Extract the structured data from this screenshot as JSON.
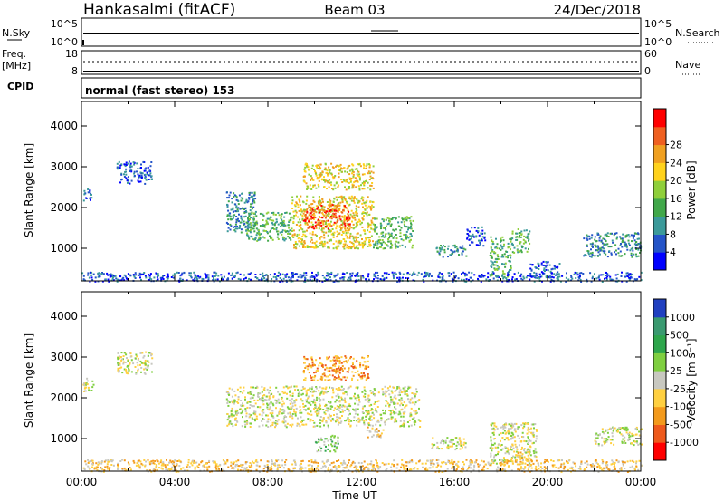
{
  "header": {
    "station": "Hankasalmi (fitACF)",
    "beam": "Beam 03",
    "date": "24/Dec/2018"
  },
  "panels": {
    "nsky": {
      "left_label": "N.Sky",
      "right_label": "N.Search",
      "left_ticks": [
        "10^5",
        "10^0"
      ],
      "right_ticks": [
        "10^5",
        "10^0"
      ]
    },
    "freq": {
      "left_label_1": "Freq.",
      "left_label_2": "[MHz]",
      "right_label": "Nave",
      "left_ticks": [
        "18",
        "8"
      ],
      "right_ticks": [
        "60",
        "0"
      ]
    },
    "cpid": {
      "label": "CPID",
      "mode": "normal (fast stereo) 153"
    }
  },
  "chart_data": [
    {
      "type": "heatmap",
      "name": "power",
      "ylabel": "Slant Range [km]",
      "ylim": [
        200,
        4600
      ],
      "yticks": [
        "1000",
        "2000",
        "3000",
        "4000"
      ],
      "colorbar": {
        "label": "Power [dB]",
        "ticks": [
          "4",
          "8",
          "12",
          "16",
          "20",
          "24",
          "28"
        ],
        "colors": [
          "#0000ff",
          "#2454c8",
          "#3b9a9a",
          "#41a84a",
          "#8fcf3a",
          "#ffd21c",
          "#f0a020",
          "#ef6020",
          "#ff0000"
        ]
      },
      "regions": [
        {
          "t0": 0.0,
          "t1": 0.4,
          "r0": 2150,
          "r1": 2500,
          "level": 1
        },
        {
          "t0": 1.5,
          "t1": 3.0,
          "r0": 2600,
          "r1": 3150,
          "level": 1
        },
        {
          "t0": 6.2,
          "t1": 7.5,
          "r0": 1400,
          "r1": 2400,
          "level": 2
        },
        {
          "t0": 7.0,
          "t1": 9.0,
          "r0": 1200,
          "r1": 1900,
          "level": 3
        },
        {
          "t0": 9.0,
          "t1": 12.5,
          "r0": 1000,
          "r1": 2300,
          "level": 5
        },
        {
          "t0": 9.5,
          "t1": 11.5,
          "r0": 1500,
          "r1": 2100,
          "level": 7
        },
        {
          "t0": 9.5,
          "t1": 12.5,
          "r0": 2450,
          "r1": 3100,
          "level": 5
        },
        {
          "t0": 12.5,
          "t1": 14.2,
          "r0": 1000,
          "r1": 1800,
          "level": 3
        },
        {
          "t0": 15.2,
          "t1": 16.5,
          "r0": 800,
          "r1": 1100,
          "level": 2
        },
        {
          "t0": 16.5,
          "t1": 17.3,
          "r0": 1050,
          "r1": 1550,
          "level": 1
        },
        {
          "t0": 17.5,
          "t1": 18.4,
          "r0": 300,
          "r1": 1300,
          "level": 3
        },
        {
          "t0": 18.4,
          "t1": 19.2,
          "r0": 900,
          "r1": 1500,
          "level": 3
        },
        {
          "t0": 19.2,
          "t1": 20.5,
          "r0": 300,
          "r1": 700,
          "level": 1
        },
        {
          "t0": 21.5,
          "t1": 24.0,
          "r0": 800,
          "r1": 1400,
          "level": 2
        },
        {
          "t0": 0.0,
          "t1": 24.0,
          "r0": 200,
          "r1": 430,
          "level": 1
        }
      ]
    },
    {
      "type": "heatmap",
      "name": "velocity",
      "ylabel": "Slant Range [km]",
      "xlabel": "Time UT",
      "ylim": [
        200,
        4600
      ],
      "xlim": [
        0,
        24
      ],
      "yticks": [
        "1000",
        "2000",
        "3000",
        "4000"
      ],
      "xticks": [
        "00:00",
        "04:00",
        "08:00",
        "12:00",
        "16:00",
        "20:00",
        "00:00"
      ],
      "colorbar": {
        "label": "Velocity [m s⁻¹]",
        "ticks": [
          "1000",
          "500",
          "100",
          "25",
          "-25",
          "-100",
          "-500",
          "-1000"
        ],
        "colors": [
          "#2040c0",
          "#3a9a70",
          "#2ea64c",
          "#7fcf40",
          "#c8c8c0",
          "#ffd040",
          "#f39a1c",
          "#ee5a1c",
          "#ff0000"
        ]
      },
      "regions": [
        {
          "t0": 0.0,
          "t1": 0.5,
          "r0": 2150,
          "r1": 2500,
          "level": 4
        },
        {
          "t0": 1.5,
          "t1": 3.0,
          "r0": 2600,
          "r1": 3150,
          "level": 4
        },
        {
          "t0": 6.2,
          "t1": 14.5,
          "r0": 1300,
          "r1": 2300,
          "level": 4
        },
        {
          "t0": 9.5,
          "t1": 12.3,
          "r0": 2450,
          "r1": 3050,
          "level": 6
        },
        {
          "t0": 12.2,
          "t1": 13.0,
          "r0": 1050,
          "r1": 1300,
          "level": 5
        },
        {
          "t0": 10.0,
          "t1": 11.0,
          "r0": 700,
          "r1": 1100,
          "level": 3
        },
        {
          "t0": 15.0,
          "t1": 16.5,
          "r0": 750,
          "r1": 1050,
          "level": 4
        },
        {
          "t0": 17.5,
          "t1": 19.5,
          "r0": 400,
          "r1": 1400,
          "level": 4
        },
        {
          "t0": 18.5,
          "t1": 18.9,
          "r0": 450,
          "r1": 700,
          "level": 5
        },
        {
          "t0": 22.0,
          "t1": 24.0,
          "r0": 850,
          "r1": 1300,
          "level": 4
        },
        {
          "t0": 0.0,
          "t1": 24.0,
          "r0": 200,
          "r1": 500,
          "level": 5
        }
      ]
    }
  ]
}
